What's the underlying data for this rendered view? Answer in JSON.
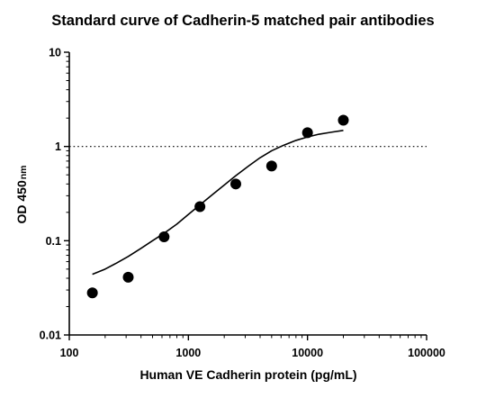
{
  "chart_data": {
    "type": "scatter",
    "title": "Standard curve of Cadherin-5 matched pair antibodies",
    "xlabel": "Human VE Cadherin protein (pg/mL)",
    "ylabel": "OD 450",
    "ylabel_unit": "nm",
    "x_scale": "log",
    "y_scale": "log",
    "xlim": [
      100,
      100000
    ],
    "ylim": [
      0.01,
      10
    ],
    "x_ticks": [
      "100",
      "1000",
      "10000",
      "100000"
    ],
    "y_ticks": [
      "0.01",
      "0.1",
      "1",
      "10"
    ],
    "grid": false,
    "legend": "none",
    "reference_line": {
      "y": 1,
      "style": "dotted"
    },
    "series": [
      {
        "points": [
          {
            "x": 156.25,
            "y": 0.028
          },
          {
            "x": 312.5,
            "y": 0.041
          },
          {
            "x": 625,
            "y": 0.11
          },
          {
            "x": 1250,
            "y": 0.23
          },
          {
            "x": 2500,
            "y": 0.4
          },
          {
            "x": 5000,
            "y": 0.62
          },
          {
            "x": 10000,
            "y": 1.4
          },
          {
            "x": 20000,
            "y": 1.9
          }
        ]
      }
    ],
    "fit_curve": {
      "x": [
        156.25,
        200,
        250,
        312.5,
        400,
        500,
        625,
        800,
        1000,
        1250,
        1600,
        2000,
        2500,
        3200,
        4000,
        5000,
        6300,
        8000,
        10000,
        12500,
        16000,
        20000
      ],
      "y": [
        0.044,
        0.05,
        0.058,
        0.068,
        0.083,
        0.1,
        0.12,
        0.15,
        0.19,
        0.24,
        0.31,
        0.39,
        0.49,
        0.62,
        0.76,
        0.9,
        1.03,
        1.16,
        1.26,
        1.35,
        1.42,
        1.48
      ]
    },
    "colors": {
      "points": "#000000",
      "axis": "#000000",
      "curve": "#000000"
    }
  }
}
